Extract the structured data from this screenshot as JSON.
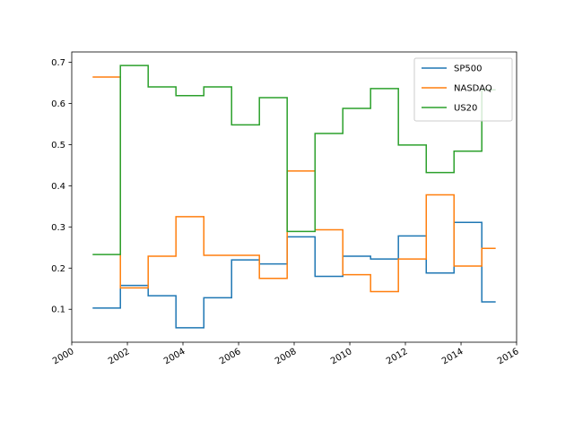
{
  "chart_data": {
    "type": "line",
    "step": "post",
    "x": [
      "2000-10-01",
      "2001-10-01",
      "2002-10-01",
      "2003-10-01",
      "2004-10-01",
      "2005-10-01",
      "2006-10-01",
      "2007-10-01",
      "2008-10-01",
      "2009-10-01",
      "2010-10-01",
      "2011-10-01",
      "2012-10-01",
      "2013-10-01",
      "2014-10-01"
    ],
    "x_end": "2015-04-01",
    "xlim": [
      "2000-01-01",
      "2016-01-01"
    ],
    "ylim": [
      0.02,
      0.725
    ],
    "x_ticks": [
      "2000",
      "2002",
      "2004",
      "2006",
      "2008",
      "2010",
      "2012",
      "2014",
      "2016"
    ],
    "y_ticks": [
      "0.1",
      "0.2",
      "0.3",
      "0.4",
      "0.5",
      "0.6",
      "0.7"
    ],
    "legend_position": "top-right",
    "grid": false,
    "series": [
      {
        "name": "SP500",
        "color": "#1f77b4",
        "values": [
          0.103,
          0.158,
          0.133,
          0.055,
          0.128,
          0.22,
          0.21,
          0.276,
          0.18,
          0.229,
          0.222,
          0.278,
          0.188,
          0.311,
          0.118
        ]
      },
      {
        "name": "NASDAQ",
        "color": "#ff7f0e",
        "values": [
          0.664,
          0.152,
          0.229,
          0.325,
          0.231,
          0.231,
          0.175,
          0.436,
          0.293,
          0.184,
          0.143,
          0.222,
          0.378,
          0.205,
          0.248
        ]
      },
      {
        "name": "US20",
        "color": "#2ca02c",
        "values": [
          0.233,
          0.692,
          0.64,
          0.619,
          0.64,
          0.548,
          0.614,
          0.289,
          0.527,
          0.588,
          0.636,
          0.499,
          0.432,
          0.484,
          0.633
        ]
      }
    ]
  }
}
